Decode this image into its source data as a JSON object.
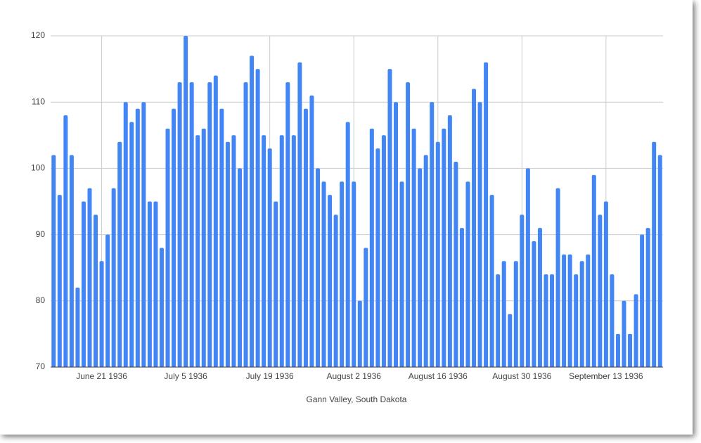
{
  "chart_data": {
    "type": "bar",
    "x_label": "Gann Valley, South Dakota",
    "categories": [
      null,
      null,
      null,
      null,
      null,
      null,
      null,
      null,
      "June 21 1936",
      null,
      null,
      null,
      null,
      null,
      null,
      null,
      null,
      null,
      null,
      null,
      null,
      null,
      "July 5 1936",
      null,
      null,
      null,
      null,
      null,
      null,
      null,
      null,
      null,
      null,
      null,
      null,
      null,
      "July 19 1936",
      null,
      null,
      null,
      null,
      null,
      null,
      null,
      null,
      null,
      null,
      null,
      null,
      null,
      "August 2 1936",
      null,
      null,
      null,
      null,
      null,
      null,
      null,
      null,
      null,
      null,
      null,
      null,
      null,
      "August 16 1936",
      null,
      null,
      null,
      null,
      null,
      null,
      null,
      null,
      null,
      null,
      null,
      null,
      null,
      "August 30 1936",
      null,
      null,
      null,
      null,
      null,
      null,
      null,
      null,
      null,
      null,
      null,
      null,
      null,
      "September 13 1936",
      null,
      null,
      null,
      null,
      null,
      null,
      null,
      null,
      null
    ],
    "values": [
      102,
      96,
      108,
      102,
      82,
      95,
      97,
      93,
      86,
      90,
      97,
      104,
      110,
      107,
      109,
      110,
      95,
      95,
      88,
      106,
      109,
      113,
      120,
      113,
      105,
      106,
      113,
      114,
      109,
      104,
      105,
      100,
      113,
      117,
      115,
      105,
      103,
      95,
      105,
      113,
      105,
      116,
      109,
      111,
      100,
      98,
      96,
      93,
      98,
      107,
      98,
      80,
      88,
      106,
      103,
      105,
      115,
      110,
      98,
      113,
      106,
      100,
      102,
      110,
      104,
      106,
      108,
      101,
      91,
      98,
      112,
      110,
      116,
      96,
      84,
      86,
      78,
      86,
      93,
      100,
      89,
      91,
      84,
      84,
      97,
      87,
      87,
      84,
      86,
      87,
      99,
      93,
      95,
      84,
      75,
      80,
      75,
      81,
      90,
      91,
      104,
      102
    ],
    "color": "#4285f4",
    "ylim": [
      70,
      120
    ],
    "yticks": [
      70,
      80,
      90,
      100,
      110,
      120
    ],
    "grid": true
  }
}
